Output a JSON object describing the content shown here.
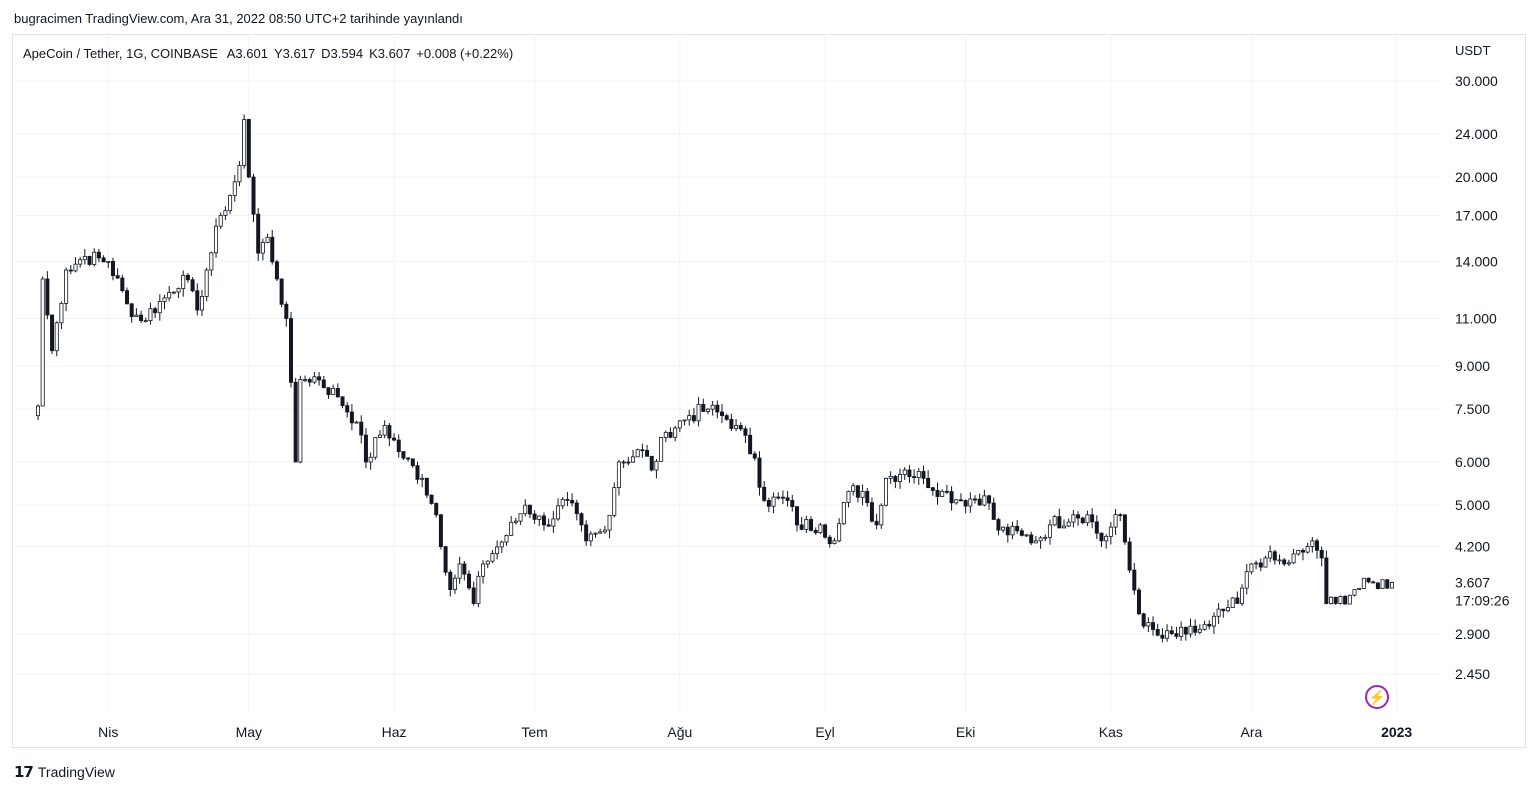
{
  "published": "bugracimen TradingView.com, Ara 31, 2022 08:50 UTC+2 tarihinde yayınlandı",
  "legend": {
    "symbol": "ApeCoin / Tether, 1G, COINBASE",
    "open": "A3.601",
    "high": "Y3.617",
    "low": "D3.594",
    "close": "K3.607",
    "change": "+0.008 (+0.22%)"
  },
  "brand": "TradingView",
  "colors": {
    "candle": "#131722",
    "grid": "#f0f3fa",
    "border": "#e0e3eb",
    "accent": "#9c27b0"
  },
  "chart_data": {
    "type": "candlestick",
    "title": "",
    "y_unit": "USDT",
    "y_scale": "log",
    "y_ticks": [
      "30.000",
      "24.000",
      "20.000",
      "17.000",
      "14.000",
      "11.000",
      "9.000",
      "7.500",
      "6.000",
      "5.000",
      "4.200",
      "2.900",
      "2.450"
    ],
    "last_price_label": "3.607",
    "countdown_label": "17:09:26",
    "x_ticks": [
      "Nis",
      "May",
      "Haz",
      "Tem",
      "Ağu",
      "Eyl",
      "Eki",
      "Kas",
      "Ara",
      "2023"
    ],
    "x_range": [
      "2022-03-17",
      "2022-12-31"
    ],
    "ylim": [
      2.2,
      33
    ],
    "grid": true,
    "anchors": [
      [
        "2022-03-17",
        7.6
      ],
      [
        "2022-03-18",
        13.0
      ],
      [
        "2022-03-20",
        9.6
      ],
      [
        "2022-03-23",
        13.5
      ],
      [
        "2022-03-27",
        14.3
      ],
      [
        "2022-04-01",
        14.0
      ],
      [
        "2022-04-05",
        11.7
      ],
      [
        "2022-04-08",
        10.9
      ],
      [
        "2022-04-13",
        12.0
      ],
      [
        "2022-04-17",
        13.2
      ],
      [
        "2022-04-20",
        11.4
      ],
      [
        "2022-04-22",
        13.5
      ],
      [
        "2022-04-25",
        17.0
      ],
      [
        "2022-04-27",
        18.5
      ],
      [
        "2022-04-29",
        21.0
      ],
      [
        "2022-04-30",
        25.5
      ],
      [
        "2022-05-01",
        20.0
      ],
      [
        "2022-05-03",
        14.5
      ],
      [
        "2022-05-05",
        15.5
      ],
      [
        "2022-05-07",
        13.0
      ],
      [
        "2022-05-09",
        11.0
      ],
      [
        "2022-05-11",
        6.0
      ],
      [
        "2022-05-12",
        8.5
      ],
      [
        "2022-05-15",
        8.6
      ],
      [
        "2022-05-20",
        7.9
      ],
      [
        "2022-05-24",
        7.1
      ],
      [
        "2022-05-26",
        6.0
      ],
      [
        "2022-05-30",
        7.0
      ],
      [
        "2022-06-03",
        6.1
      ],
      [
        "2022-06-07",
        5.6
      ],
      [
        "2022-06-10",
        4.8
      ],
      [
        "2022-06-13",
        3.5
      ],
      [
        "2022-06-15",
        3.9
      ],
      [
        "2022-06-18",
        3.3
      ],
      [
        "2022-06-20",
        3.9
      ],
      [
        "2022-06-25",
        4.4
      ],
      [
        "2022-06-29",
        5.0
      ],
      [
        "2022-07-03",
        4.6
      ],
      [
        "2022-07-08",
        5.1
      ],
      [
        "2022-07-12",
        4.3
      ],
      [
        "2022-07-16",
        4.5
      ],
      [
        "2022-07-19",
        6.0
      ],
      [
        "2022-07-24",
        6.3
      ],
      [
        "2022-07-26",
        5.8
      ],
      [
        "2022-07-29",
        6.8
      ],
      [
        "2022-08-03",
        7.3
      ],
      [
        "2022-08-07",
        7.5
      ],
      [
        "2022-08-10",
        7.3
      ],
      [
        "2022-08-13",
        7.0
      ],
      [
        "2022-08-17",
        6.1
      ],
      [
        "2022-08-19",
        5.1
      ],
      [
        "2022-08-24",
        5.1
      ],
      [
        "2022-08-26",
        4.6
      ],
      [
        "2022-08-31",
        4.6
      ],
      [
        "2022-09-03",
        4.3
      ],
      [
        "2022-09-06",
        5.3
      ],
      [
        "2022-09-09",
        5.3
      ],
      [
        "2022-09-12",
        4.6
      ],
      [
        "2022-09-14",
        5.6
      ],
      [
        "2022-09-18",
        5.8
      ],
      [
        "2022-09-22",
        5.6
      ],
      [
        "2022-09-26",
        5.3
      ],
      [
        "2022-09-30",
        5.1
      ],
      [
        "2022-10-05",
        5.2
      ],
      [
        "2022-10-08",
        4.5
      ],
      [
        "2022-10-13",
        4.4
      ],
      [
        "2022-10-16",
        4.3
      ],
      [
        "2022-10-19",
        4.6
      ],
      [
        "2022-10-24",
        4.8
      ],
      [
        "2022-10-27",
        4.8
      ],
      [
        "2022-10-30",
        4.3
      ],
      [
        "2022-11-03",
        4.8
      ],
      [
        "2022-11-05",
        3.8
      ],
      [
        "2022-11-08",
        3.0
      ],
      [
        "2022-11-12",
        2.85
      ],
      [
        "2022-11-17",
        2.9
      ],
      [
        "2022-11-22",
        3.0
      ],
      [
        "2022-11-25",
        3.2
      ],
      [
        "2022-11-28",
        3.3
      ],
      [
        "2022-12-01",
        3.9
      ],
      [
        "2022-12-04",
        4.0
      ],
      [
        "2022-12-08",
        3.9
      ],
      [
        "2022-12-12",
        4.1
      ],
      [
        "2022-12-14",
        4.3
      ],
      [
        "2022-12-16",
        4.0
      ],
      [
        "2022-12-17",
        3.3
      ],
      [
        "2022-12-19",
        3.3
      ],
      [
        "2022-12-23",
        3.5
      ],
      [
        "2022-12-27",
        3.6
      ],
      [
        "2022-12-31",
        3.607
      ]
    ]
  }
}
